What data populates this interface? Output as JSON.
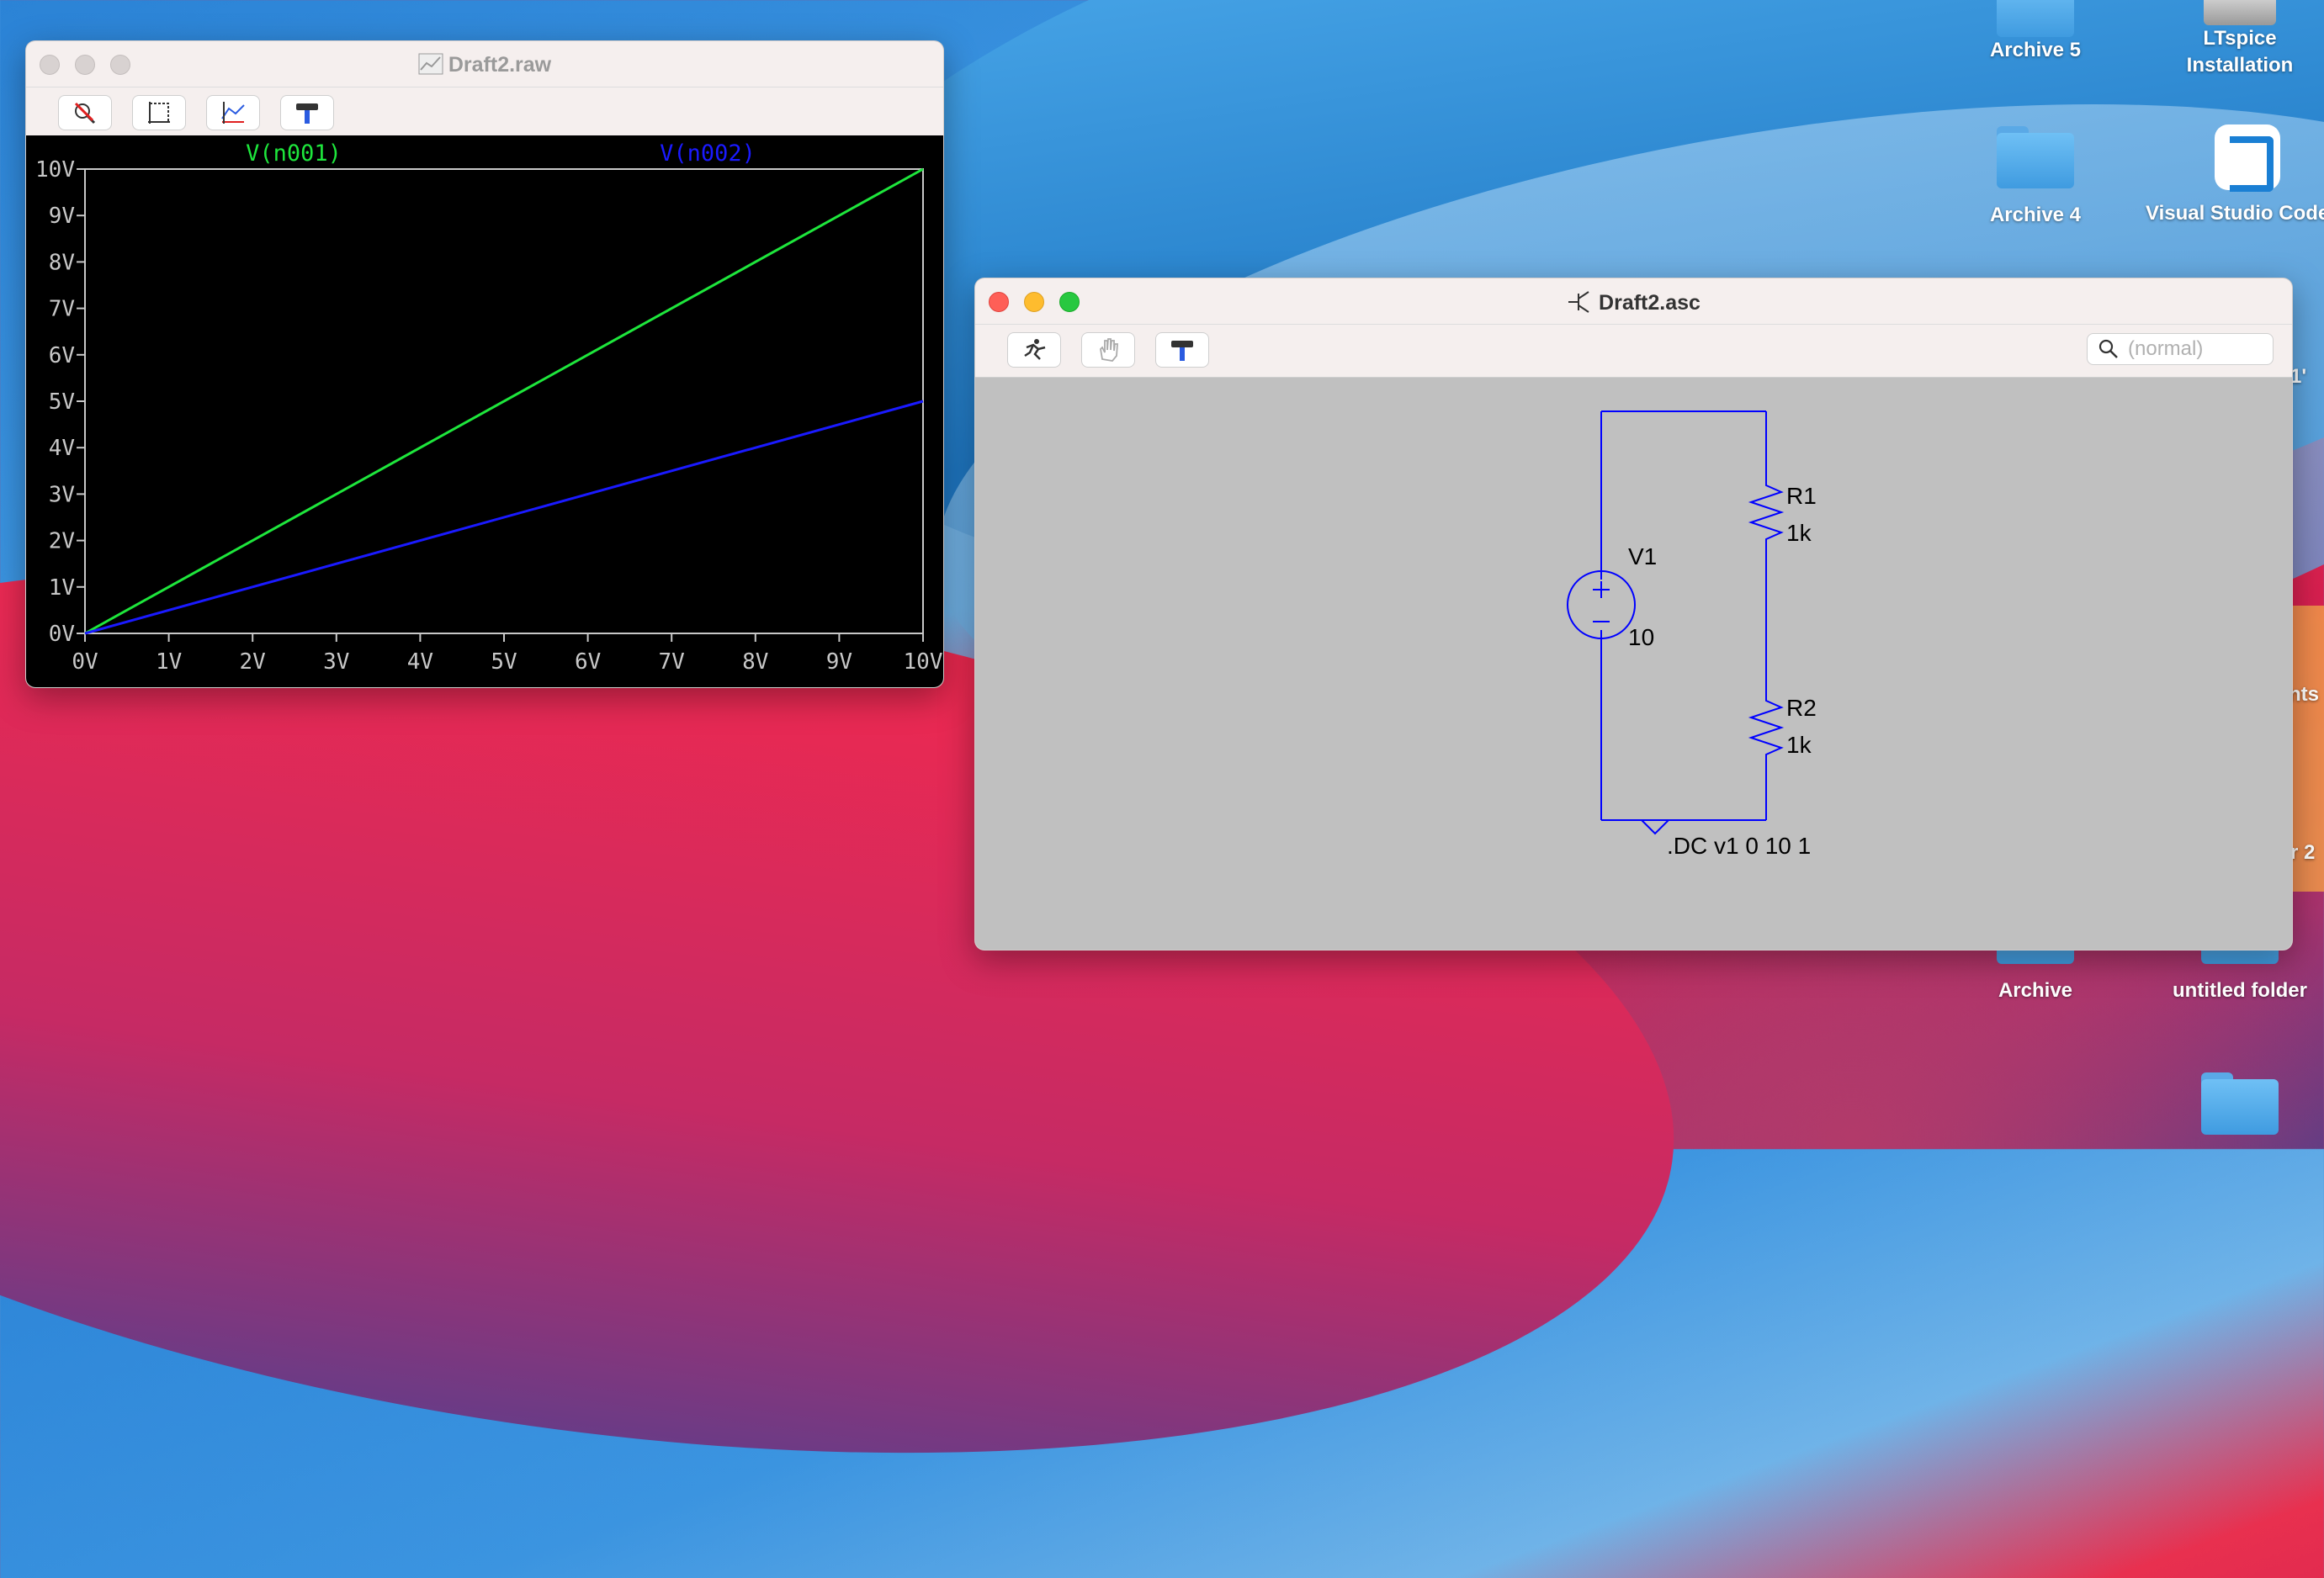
{
  "desktop": {
    "icons": [
      {
        "label": "Archive 5"
      },
      {
        "label": "LTspice Installation"
      },
      {
        "label": "Archive 4"
      },
      {
        "label": "Visual Studio Code"
      },
      {
        "label": "Archive"
      },
      {
        "label": "untitled folder"
      }
    ],
    "partial_labels": [
      "1'",
      "nts",
      "r 2"
    ]
  },
  "raw_window": {
    "title": "Draft2.raw",
    "toolbar": [
      "zoom-cancel-icon",
      "autorange-icon",
      "pick-trace-icon",
      "hammer-icon"
    ],
    "colors": {
      "background": "#000000",
      "n001": "#1ee63c",
      "n002": "#1a1aff",
      "axis": "#c8c8c8"
    }
  },
  "asc_window": {
    "title": "Draft2.asc",
    "toolbar": [
      "run-icon",
      "hand-icon",
      "hammer-icon"
    ],
    "search": {
      "placeholder": "(normal)"
    },
    "schematic": {
      "source": {
        "name": "V1",
        "value": "10"
      },
      "r1": {
        "name": "R1",
        "value": "1k"
      },
      "r2": {
        "name": "R2",
        "value": "1k"
      },
      "directive": ".DC v1 0 10 1",
      "wire_color": "#0000ff"
    }
  },
  "chart_data": {
    "type": "line",
    "x": [
      0,
      10
    ],
    "series": [
      {
        "name": "V(n001)",
        "values": [
          0,
          10
        ]
      },
      {
        "name": "V(n002)",
        "values": [
          0,
          5
        ]
      }
    ],
    "xlim": [
      0,
      10
    ],
    "ylim": [
      0,
      10
    ],
    "xticks": [
      "0V",
      "1V",
      "2V",
      "3V",
      "4V",
      "5V",
      "6V",
      "7V",
      "8V",
      "9V",
      "10V"
    ],
    "yticks": [
      "0V",
      "1V",
      "2V",
      "3V",
      "4V",
      "5V",
      "6V",
      "7V",
      "8V",
      "9V",
      "10V"
    ],
    "grid": false
  }
}
